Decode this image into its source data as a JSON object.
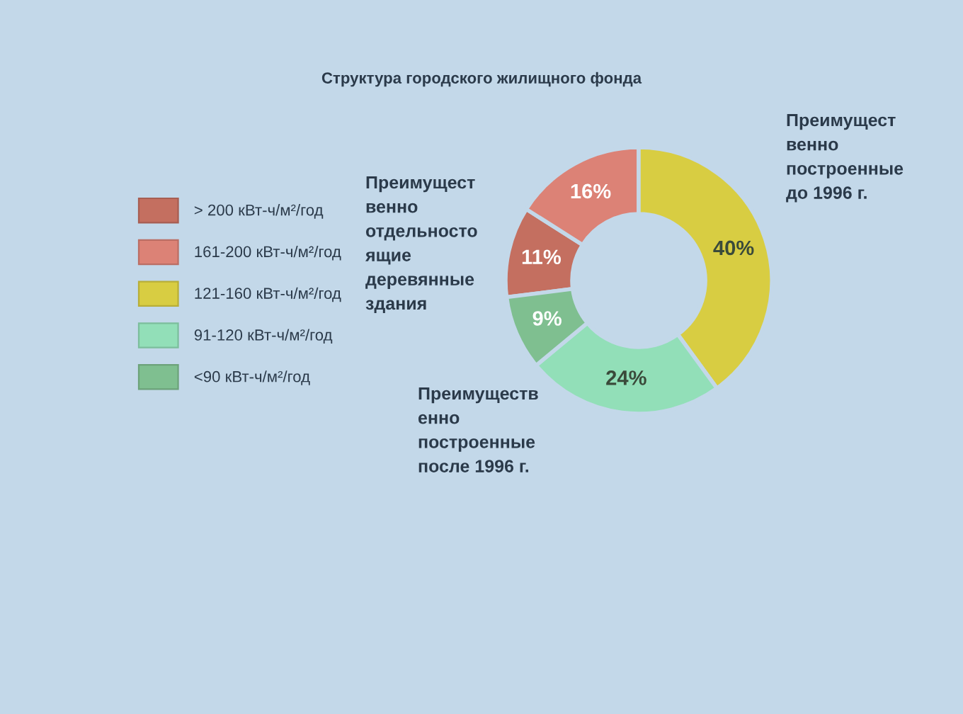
{
  "chart_data": {
    "type": "donut",
    "title": "Структура городского жилищного фонда",
    "categories": [
      "> 200 кВт-ч/м²/год",
      "161-200 кВт-ч/м²/год",
      "121-160 кВт-ч/м²/год",
      "91-120 кВт-ч/м²/год",
      "<90 кВт-ч/м²/год"
    ],
    "values": [
      11,
      16,
      40,
      24,
      9
    ],
    "colors": [
      "#c46f60",
      "#dc8276",
      "#d8cd42",
      "#92dfb8",
      "#7fbf90"
    ],
    "value_labels": [
      "11%",
      "16%",
      "40%",
      "24%",
      "9%"
    ],
    "legend": "left",
    "annotations": [
      "Преимущест\nвенно\nотдельносто\nящие\nдеревянные\nздания",
      "Преимущест\nвенно\nпостроенные\nдо 1996 г.",
      "Преимуществ\nенно\nпостроенные\nпосле 1996 г."
    ]
  }
}
